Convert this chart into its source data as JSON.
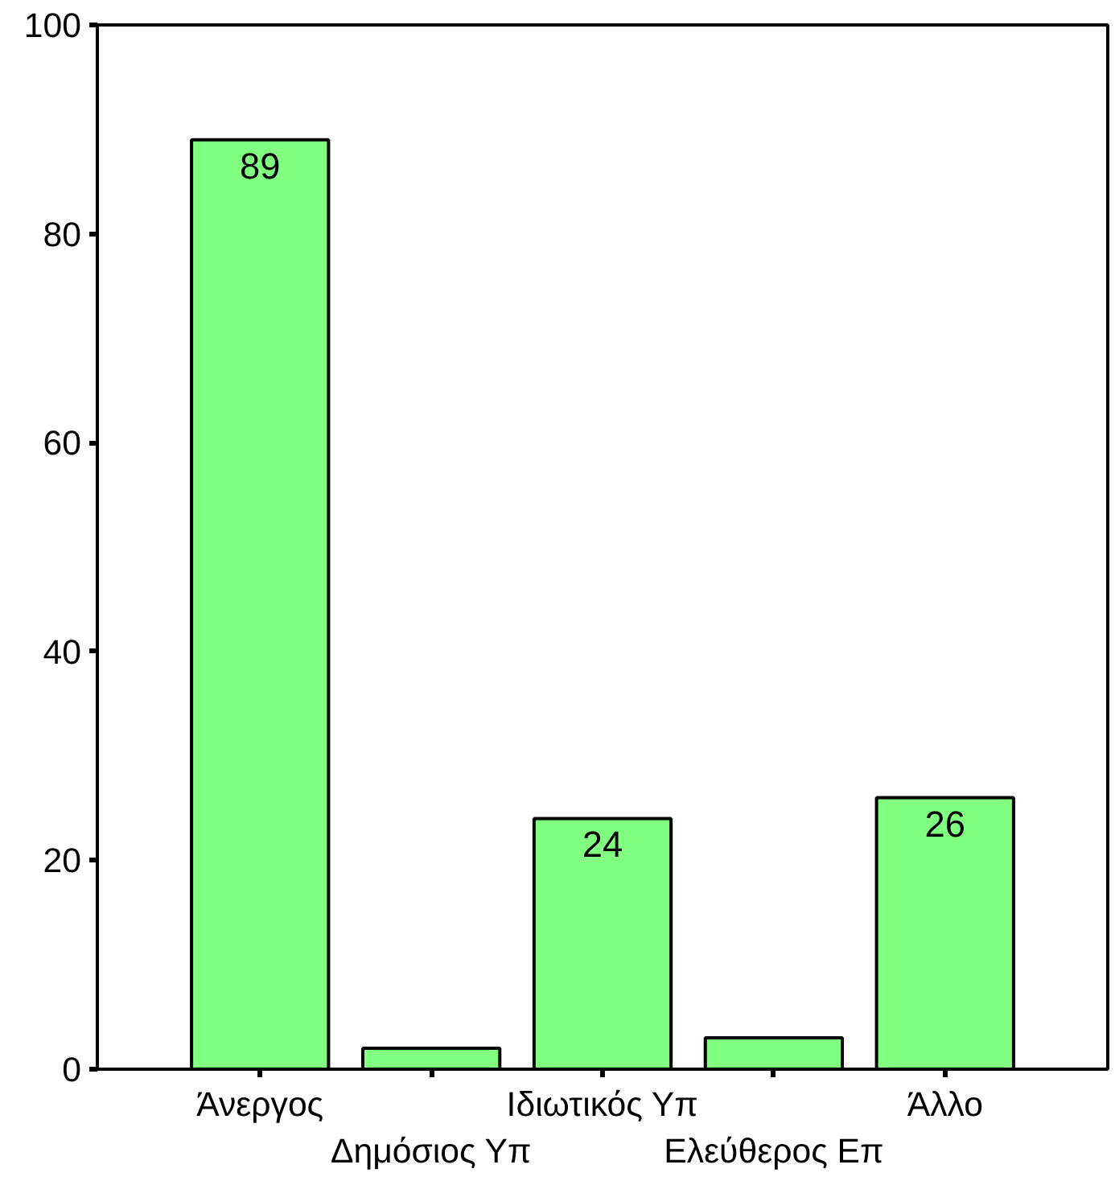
{
  "chart_data": {
    "type": "bar",
    "categories": [
      "Άνεργος",
      "Δημόσιος Υπ",
      "Ιδιωτικός Υπ",
      "Ελεύθερος Επ",
      "Άλλο"
    ],
    "values": [
      89,
      2,
      24,
      3,
      26
    ],
    "color": "#80ff80",
    "value_labels": [
      "89",
      null,
      "24",
      null,
      "26"
    ],
    "ylim": [
      0,
      100
    ],
    "yticks": [
      0,
      20,
      40,
      60,
      80,
      100
    ],
    "grid": false
  }
}
